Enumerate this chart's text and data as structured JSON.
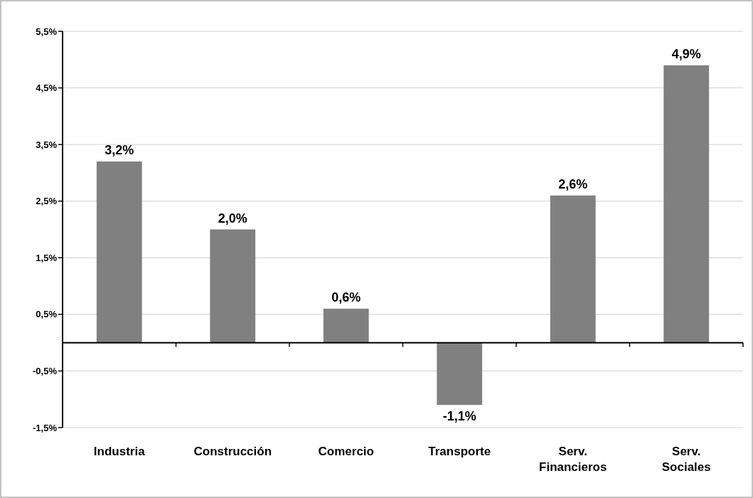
{
  "chart_data": {
    "type": "bar",
    "categories": [
      "Industria",
      "Construcción",
      "Comercio",
      "Transporte",
      "Serv. Financieros",
      "Serv. Sociales"
    ],
    "values": [
      3.2,
      2.0,
      0.6,
      -1.1,
      2.6,
      4.9
    ],
    "value_labels": [
      "3,2%",
      "2,0%",
      "0,6%",
      "-1,1%",
      "2,6%",
      "4,9%"
    ],
    "color": "#808080",
    "ylim": [
      -1.5,
      5.5
    ],
    "yticks": [
      {
        "value": -1.5,
        "label": "-1,5%"
      },
      {
        "value": -0.5,
        "label": "-0,5%"
      },
      {
        "value": 0.5,
        "label": "0,5%"
      },
      {
        "value": 1.5,
        "label": "1,5%"
      },
      {
        "value": 2.5,
        "label": "2,5%"
      },
      {
        "value": 3.5,
        "label": "3,5%"
      },
      {
        "value": 4.5,
        "label": "4,5%"
      },
      {
        "value": 5.5,
        "label": "5,5%"
      }
    ],
    "grid": "y"
  }
}
